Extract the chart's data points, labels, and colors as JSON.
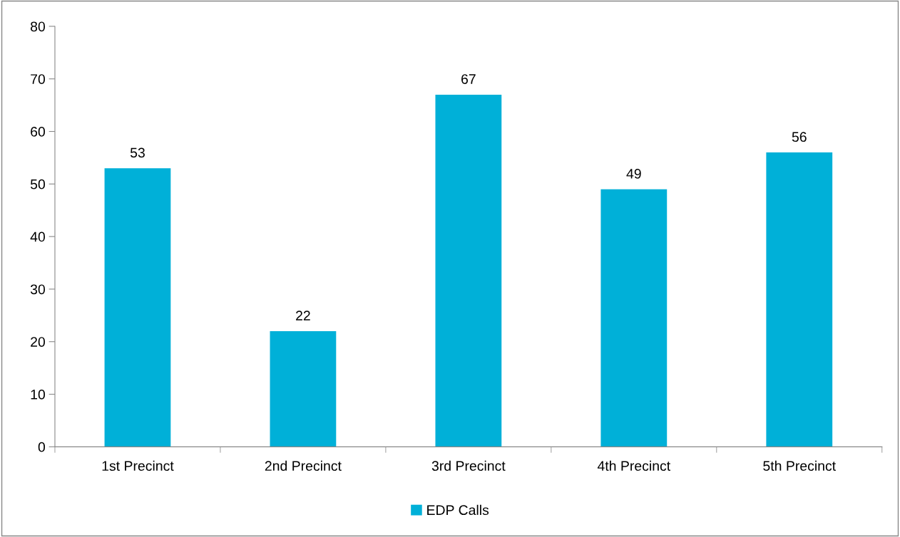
{
  "chart_data": {
    "type": "bar",
    "categories": [
      "1st Precinct",
      "2nd Precinct",
      "3rd Precinct",
      "4th Precinct",
      "5th Precinct"
    ],
    "series": [
      {
        "name": "EDP Calls",
        "color": "#00b0d8",
        "values": [
          53,
          22,
          67,
          49,
          56
        ]
      }
    ],
    "ylim": [
      0,
      80
    ],
    "yticks": [
      0,
      10,
      20,
      30,
      40,
      50,
      60,
      70,
      80
    ],
    "data_labels": true,
    "grid": false,
    "legend": "bottom"
  }
}
